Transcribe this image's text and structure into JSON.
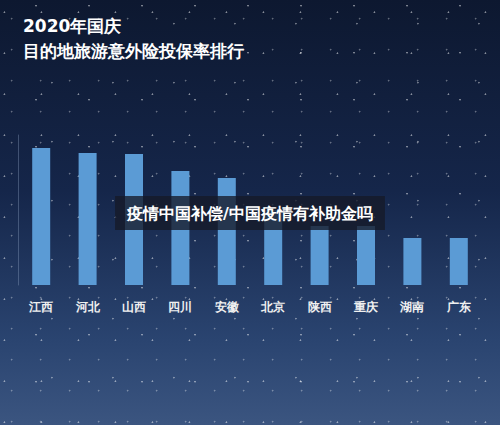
{
  "chart_data": {
    "type": "bar",
    "title": "2020年国庆",
    "subtitle": "目的地旅游意外险投保率排行",
    "annotation": "疫情中国补偿/中国疫情有补助金吗",
    "categories": [
      "江西",
      "河北",
      "山西",
      "四川",
      "安徽",
      "北京",
      "陕西",
      "重庆",
      "湖南",
      "广东"
    ],
    "values": [
      137,
      132,
      131,
      114,
      107,
      75,
      59,
      59,
      47,
      47
    ],
    "color": "#5b9bd5",
    "ylim": [
      0,
      150
    ],
    "tick_labels": "x",
    "grid": false
  }
}
